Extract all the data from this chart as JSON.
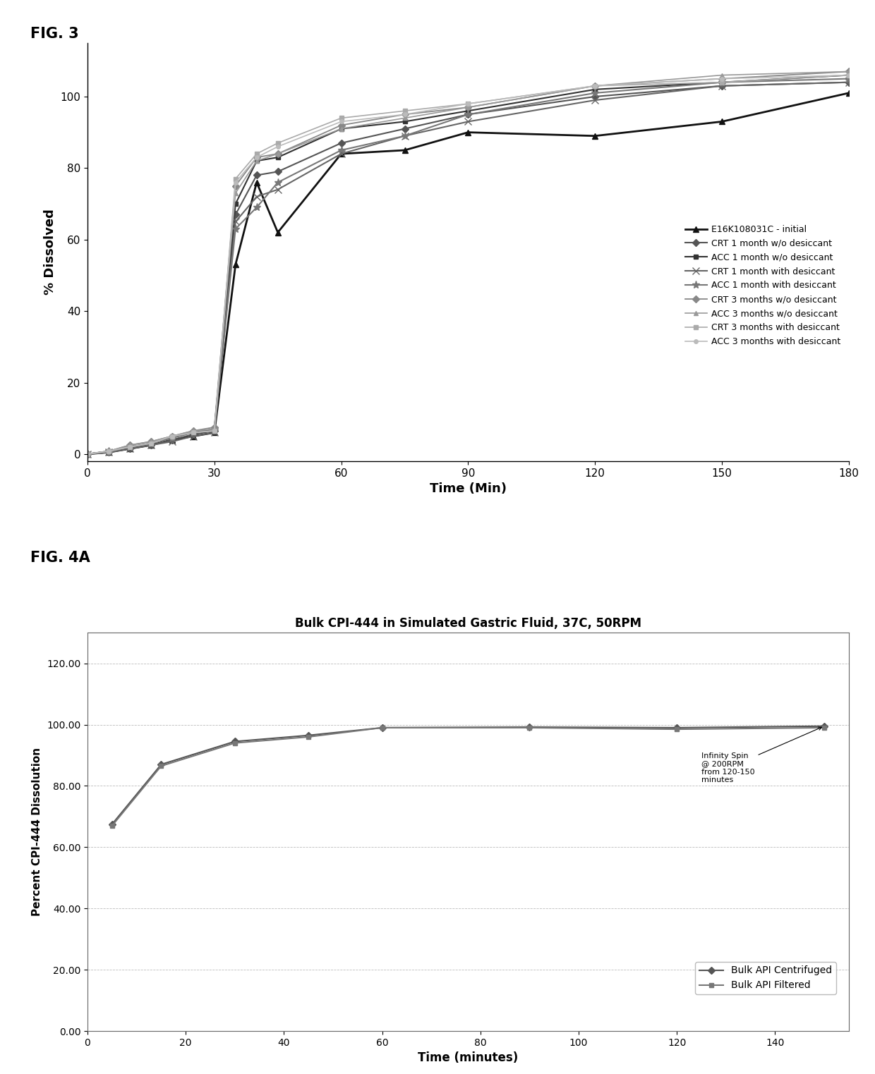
{
  "fig3": {
    "title_label": "FIG. 3",
    "xlabel": "Time (Min)",
    "ylabel": "% Dissolved",
    "xlim": [
      0,
      180
    ],
    "ylim": [
      -2,
      115
    ],
    "xticks": [
      0,
      30,
      60,
      90,
      120,
      150,
      180
    ],
    "yticks": [
      0,
      20,
      40,
      60,
      80,
      100
    ],
    "series": [
      {
        "label": "E16K108031C - initial",
        "color": "#111111",
        "marker": "^",
        "markersize": 6,
        "linewidth": 2.0,
        "linestyle": "-",
        "x": [
          0,
          5,
          10,
          15,
          20,
          25,
          30,
          35,
          40,
          45,
          60,
          75,
          90,
          120,
          150,
          180
        ],
        "y": [
          0,
          0.5,
          1.5,
          2.5,
          4,
          5,
          6,
          53,
          76,
          62,
          84,
          85,
          90,
          89,
          93,
          101
        ]
      },
      {
        "label": "CRT 1 month w/o desiccant",
        "color": "#555555",
        "marker": "D",
        "markersize": 5,
        "linewidth": 1.5,
        "linestyle": "-",
        "x": [
          0,
          5,
          10,
          15,
          20,
          25,
          30,
          35,
          40,
          45,
          60,
          75,
          90,
          120,
          150,
          180
        ],
        "y": [
          0,
          0.5,
          1.5,
          2.5,
          4,
          5.5,
          6.5,
          67,
          78,
          79,
          87,
          91,
          95,
          100,
          103,
          104
        ]
      },
      {
        "label": "ACC 1 month w/o desiccant",
        "color": "#333333",
        "marker": "s",
        "markersize": 5,
        "linewidth": 1.5,
        "linestyle": "-",
        "x": [
          0,
          5,
          10,
          15,
          20,
          25,
          30,
          35,
          40,
          45,
          60,
          75,
          90,
          120,
          150,
          180
        ],
        "y": [
          0,
          0.8,
          2,
          3,
          5,
          6,
          7,
          70,
          82,
          83,
          91,
          93,
          96,
          102,
          104,
          106
        ]
      },
      {
        "label": "CRT 1 month with desiccant",
        "color": "#666666",
        "marker": "x",
        "markersize": 7,
        "linewidth": 1.5,
        "linestyle": "-",
        "x": [
          0,
          5,
          10,
          15,
          20,
          25,
          30,
          35,
          40,
          45,
          60,
          75,
          90,
          120,
          150,
          180
        ],
        "y": [
          0,
          0.5,
          1.5,
          2.5,
          3.5,
          5,
          6,
          65,
          72,
          74,
          84,
          89,
          93,
          99,
          103,
          104
        ]
      },
      {
        "label": "ACC 1 month with desiccant",
        "color": "#777777",
        "marker": "*",
        "markersize": 8,
        "linewidth": 1.5,
        "linestyle": "-",
        "x": [
          0,
          5,
          10,
          15,
          20,
          25,
          30,
          35,
          40,
          45,
          60,
          75,
          90,
          120,
          150,
          180
        ],
        "y": [
          0,
          0.7,
          2,
          3,
          4.5,
          6,
          7,
          63,
          69,
          76,
          85,
          89,
          95,
          101,
          104,
          105
        ]
      },
      {
        "label": "CRT 3 months w/o desiccant",
        "color": "#888888",
        "marker": "D",
        "markersize": 5,
        "linewidth": 1.3,
        "linestyle": "-",
        "x": [
          0,
          5,
          10,
          15,
          20,
          25,
          30,
          35,
          40,
          45,
          60,
          75,
          90,
          120,
          150,
          180
        ],
        "y": [
          0,
          0.8,
          2.5,
          3.5,
          5,
          6.5,
          7.5,
          75,
          83,
          84,
          92,
          95,
          97,
          103,
          105,
          107
        ]
      },
      {
        "label": "ACC 3 months w/o desiccant",
        "color": "#999999",
        "marker": "^",
        "markersize": 5,
        "linewidth": 1.2,
        "linestyle": "-",
        "x": [
          0,
          5,
          10,
          15,
          20,
          25,
          30,
          35,
          40,
          45,
          60,
          75,
          90,
          120,
          150,
          180
        ],
        "y": [
          0,
          0.8,
          2.5,
          3.5,
          5,
          6.5,
          7,
          73,
          82,
          84,
          91,
          94,
          97,
          103,
          106,
          107
        ]
      },
      {
        "label": "CRT 3 months with desiccant",
        "color": "#aaaaaa",
        "marker": "s",
        "markersize": 4,
        "linewidth": 1.2,
        "linestyle": "-",
        "x": [
          0,
          5,
          10,
          15,
          20,
          25,
          30,
          35,
          40,
          45,
          60,
          75,
          90,
          120,
          150,
          180
        ],
        "y": [
          0,
          0.8,
          2,
          3,
          5,
          6,
          6.5,
          77,
          84,
          87,
          94,
          96,
          98,
          103,
          104,
          106
        ]
      },
      {
        "label": "ACC 3 months with desiccant",
        "color": "#bbbbbb",
        "marker": "o",
        "markersize": 4,
        "linewidth": 1.2,
        "linestyle": "-",
        "x": [
          0,
          5,
          10,
          15,
          20,
          25,
          30,
          35,
          40,
          45,
          60,
          75,
          90,
          120,
          150,
          180
        ],
        "y": [
          0,
          0.8,
          2,
          3,
          5,
          6,
          6.5,
          76,
          83,
          86,
          93,
          95,
          98,
          103,
          105,
          106
        ]
      }
    ]
  },
  "fig4a": {
    "title": "Bulk CPI-444 in Simulated Gastric Fluid, 37C, 50RPM",
    "xlabel": "Time (minutes)",
    "ylabel": "Percent CPI-444 Dissolution",
    "xlim": [
      0,
      155
    ],
    "ylim": [
      0,
      130
    ],
    "xticks": [
      0,
      20,
      40,
      60,
      80,
      100,
      120,
      140
    ],
    "yticks": [
      0.0,
      20.0,
      40.0,
      60.0,
      80.0,
      100.0,
      120.0
    ],
    "ytick_labels": [
      "0.00",
      "20.00",
      "40.00",
      "60.00",
      "80.00",
      "100.00",
      "120.00"
    ],
    "annotation_text": "Infinity Spin\n@ 200RPM\nfrom 120-150\nminutes",
    "series": [
      {
        "label": "Bulk API Centrifuged",
        "color": "#555555",
        "marker": "D",
        "markersize": 5,
        "linewidth": 1.5,
        "linestyle": "-",
        "x": [
          5,
          15,
          30,
          45,
          60,
          90,
          120,
          150
        ],
        "y": [
          67.5,
          87.0,
          94.5,
          96.5,
          99.0,
          99.2,
          99.0,
          99.5
        ]
      },
      {
        "label": "Bulk API Filtered",
        "color": "#777777",
        "marker": "s",
        "markersize": 5,
        "linewidth": 1.5,
        "linestyle": "-",
        "x": [
          5,
          15,
          30,
          45,
          60,
          90,
          120,
          150
        ],
        "y": [
          67.0,
          86.5,
          94.0,
          96.0,
          99.0,
          99.0,
          98.5,
          99.0
        ]
      }
    ],
    "grid_color": "#bbbbbb",
    "grid_linestyle": "--",
    "grid_linewidth": 0.6
  }
}
